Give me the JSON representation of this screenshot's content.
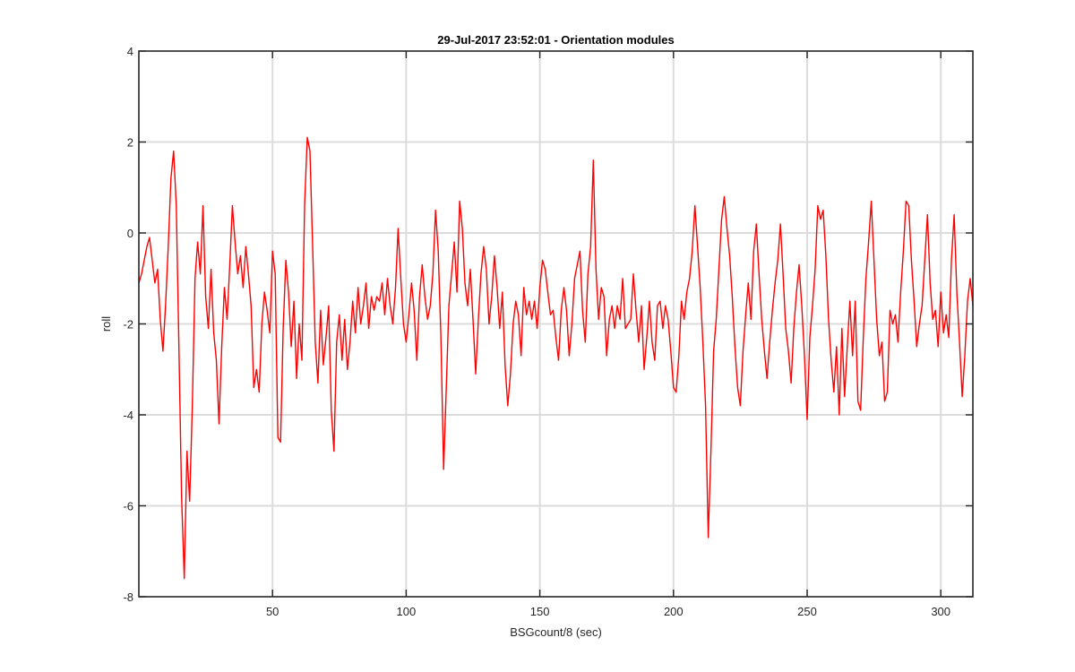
{
  "chart_data": {
    "type": "line",
    "title": "29-Jul-2017 23:52:01 - Orientation modules",
    "xlabel": "BSGcount/8 (sec)",
    "ylabel": "roll",
    "xlim": [
      0,
      312
    ],
    "ylim": [
      -8,
      4
    ],
    "xticks": [
      50,
      100,
      150,
      200,
      250,
      300
    ],
    "yticks": [
      -8,
      -6,
      -4,
      -2,
      0,
      2,
      4
    ],
    "grid": true,
    "legend": "none",
    "series": [
      {
        "color": "#ff0000",
        "points": [
          [
            0,
            -1.1
          ],
          [
            1,
            -0.9
          ],
          [
            2,
            -0.6
          ],
          [
            3,
            -0.3
          ],
          [
            4,
            -0.1
          ],
          [
            5,
            -0.6
          ],
          [
            6,
            -1.1
          ],
          [
            7,
            -0.8
          ],
          [
            8,
            -1.9
          ],
          [
            9,
            -2.6
          ],
          [
            10,
            -1.6
          ],
          [
            11,
            -0.3
          ],
          [
            12,
            1.2
          ],
          [
            13,
            1.8
          ],
          [
            14,
            0.6
          ],
          [
            15,
            -2.6
          ],
          [
            16,
            -5.8
          ],
          [
            17,
            -7.6
          ],
          [
            18,
            -4.8
          ],
          [
            19,
            -5.9
          ],
          [
            20,
            -3.8
          ],
          [
            21,
            -1.0
          ],
          [
            22,
            -0.2
          ],
          [
            23,
            -0.9
          ],
          [
            24,
            0.6
          ],
          [
            25,
            -1.4
          ],
          [
            26,
            -2.1
          ],
          [
            27,
            -0.8
          ],
          [
            28,
            -2.2
          ],
          [
            29,
            -2.8
          ],
          [
            30,
            -4.2
          ],
          [
            31,
            -2.5
          ],
          [
            32,
            -1.2
          ],
          [
            33,
            -1.9
          ],
          [
            34,
            -0.7
          ],
          [
            35,
            0.6
          ],
          [
            36,
            -0.2
          ],
          [
            37,
            -0.9
          ],
          [
            38,
            -0.5
          ],
          [
            39,
            -1.2
          ],
          [
            40,
            -0.3
          ],
          [
            41,
            -0.9
          ],
          [
            42,
            -1.6
          ],
          [
            43,
            -3.4
          ],
          [
            44,
            -3.0
          ],
          [
            45,
            -3.5
          ],
          [
            46,
            -2.0
          ],
          [
            47,
            -1.3
          ],
          [
            48,
            -1.7
          ],
          [
            49,
            -2.2
          ],
          [
            50,
            -0.4
          ],
          [
            51,
            -0.9
          ],
          [
            52,
            -4.5
          ],
          [
            53,
            -4.6
          ],
          [
            54,
            -2.1
          ],
          [
            55,
            -0.6
          ],
          [
            56,
            -1.3
          ],
          [
            57,
            -2.5
          ],
          [
            58,
            -1.5
          ],
          [
            59,
            -3.2
          ],
          [
            60,
            -2.0
          ],
          [
            61,
            -2.8
          ],
          [
            62,
            0.6
          ],
          [
            63,
            2.1
          ],
          [
            64,
            1.8
          ],
          [
            65,
            -0.3
          ],
          [
            66,
            -2.4
          ],
          [
            67,
            -3.3
          ],
          [
            68,
            -1.7
          ],
          [
            69,
            -2.9
          ],
          [
            70,
            -2.3
          ],
          [
            71,
            -1.6
          ],
          [
            72,
            -3.9
          ],
          [
            73,
            -4.8
          ],
          [
            74,
            -2.4
          ],
          [
            75,
            -1.8
          ],
          [
            76,
            -2.8
          ],
          [
            77,
            -1.9
          ],
          [
            78,
            -3.0
          ],
          [
            79,
            -2.4
          ],
          [
            80,
            -1.5
          ],
          [
            81,
            -2.2
          ],
          [
            82,
            -1.2
          ],
          [
            83,
            -2.0
          ],
          [
            84,
            -1.6
          ],
          [
            85,
            -1.1
          ],
          [
            86,
            -2.1
          ],
          [
            87,
            -1.4
          ],
          [
            88,
            -1.7
          ],
          [
            89,
            -1.4
          ],
          [
            90,
            -1.5
          ],
          [
            91,
            -1.1
          ],
          [
            92,
            -1.8
          ],
          [
            93,
            -1.0
          ],
          [
            94,
            -1.6
          ],
          [
            95,
            -2.0
          ],
          [
            96,
            -1.2
          ],
          [
            97,
            0.1
          ],
          [
            98,
            -1.0
          ],
          [
            99,
            -2.0
          ],
          [
            100,
            -2.4
          ],
          [
            101,
            -1.8
          ],
          [
            102,
            -1.1
          ],
          [
            103,
            -1.7
          ],
          [
            104,
            -2.8
          ],
          [
            105,
            -1.4
          ],
          [
            106,
            -0.7
          ],
          [
            107,
            -1.4
          ],
          [
            108,
            -1.9
          ],
          [
            109,
            -1.6
          ],
          [
            110,
            -0.9
          ],
          [
            111,
            0.5
          ],
          [
            112,
            -0.4
          ],
          [
            113,
            -2.3
          ],
          [
            114,
            -5.2
          ],
          [
            115,
            -3.4
          ],
          [
            116,
            -1.6
          ],
          [
            117,
            -0.9
          ],
          [
            118,
            -0.2
          ],
          [
            119,
            -1.3
          ],
          [
            120,
            0.7
          ],
          [
            121,
            0.1
          ],
          [
            122,
            -1.1
          ],
          [
            123,
            -1.6
          ],
          [
            124,
            -0.8
          ],
          [
            125,
            -1.9
          ],
          [
            126,
            -3.1
          ],
          [
            127,
            -1.9
          ],
          [
            128,
            -0.9
          ],
          [
            129,
            -0.3
          ],
          [
            130,
            -0.8
          ],
          [
            131,
            -2.0
          ],
          [
            132,
            -1.4
          ],
          [
            133,
            -0.5
          ],
          [
            134,
            -1.2
          ],
          [
            135,
            -2.1
          ],
          [
            136,
            -1.3
          ],
          [
            137,
            -2.9
          ],
          [
            138,
            -3.8
          ],
          [
            139,
            -3.1
          ],
          [
            140,
            -2.0
          ],
          [
            141,
            -1.5
          ],
          [
            142,
            -1.8
          ],
          [
            143,
            -2.7
          ],
          [
            144,
            -1.2
          ],
          [
            145,
            -1.8
          ],
          [
            146,
            -1.5
          ],
          [
            147,
            -1.9
          ],
          [
            148,
            -1.5
          ],
          [
            149,
            -2.1
          ],
          [
            150,
            -1.2
          ],
          [
            151,
            -0.6
          ],
          [
            152,
            -0.8
          ],
          [
            153,
            -1.3
          ],
          [
            154,
            -1.8
          ],
          [
            155,
            -1.7
          ],
          [
            156,
            -2.3
          ],
          [
            157,
            -2.8
          ],
          [
            158,
            -1.7
          ],
          [
            159,
            -1.2
          ],
          [
            160,
            -1.7
          ],
          [
            161,
            -2.7
          ],
          [
            162,
            -2.0
          ],
          [
            163,
            -1.0
          ],
          [
            164,
            -0.7
          ],
          [
            165,
            -0.4
          ],
          [
            166,
            -1.7
          ],
          [
            167,
            -2.4
          ],
          [
            168,
            -0.9
          ],
          [
            169,
            -0.3
          ],
          [
            170,
            1.6
          ],
          [
            171,
            -0.8
          ],
          [
            172,
            -1.9
          ],
          [
            173,
            -1.2
          ],
          [
            174,
            -1.4
          ],
          [
            175,
            -2.7
          ],
          [
            176,
            -1.9
          ],
          [
            177,
            -1.6
          ],
          [
            178,
            -2.1
          ],
          [
            179,
            -1.6
          ],
          [
            180,
            -1.9
          ],
          [
            181,
            -1.0
          ],
          [
            182,
            -2.1
          ],
          [
            183,
            -2.0
          ],
          [
            184,
            -1.9
          ],
          [
            185,
            -0.9
          ],
          [
            186,
            -1.7
          ],
          [
            187,
            -2.4
          ],
          [
            188,
            -1.6
          ],
          [
            189,
            -3.0
          ],
          [
            190,
            -2.3
          ],
          [
            191,
            -1.5
          ],
          [
            192,
            -2.4
          ],
          [
            193,
            -2.8
          ],
          [
            194,
            -1.6
          ],
          [
            195,
            -1.5
          ],
          [
            196,
            -2.1
          ],
          [
            197,
            -1.6
          ],
          [
            198,
            -1.9
          ],
          [
            199,
            -2.6
          ],
          [
            200,
            -3.4
          ],
          [
            201,
            -3.5
          ],
          [
            202,
            -2.7
          ],
          [
            203,
            -1.5
          ],
          [
            204,
            -1.9
          ],
          [
            205,
            -1.3
          ],
          [
            206,
            -1.0
          ],
          [
            207,
            -0.4
          ],
          [
            208,
            0.6
          ],
          [
            209,
            -0.3
          ],
          [
            210,
            -1.2
          ],
          [
            211,
            -2.4
          ],
          [
            212,
            -3.8
          ],
          [
            213,
            -6.7
          ],
          [
            214,
            -4.8
          ],
          [
            215,
            -2.6
          ],
          [
            216,
            -1.9
          ],
          [
            217,
            -0.8
          ],
          [
            218,
            0.3
          ],
          [
            219,
            0.8
          ],
          [
            220,
            0.1
          ],
          [
            221,
            -0.5
          ],
          [
            222,
            -1.4
          ],
          [
            223,
            -2.5
          ],
          [
            224,
            -3.4
          ],
          [
            225,
            -3.8
          ],
          [
            226,
            -2.6
          ],
          [
            227,
            -1.8
          ],
          [
            228,
            -1.1
          ],
          [
            229,
            -1.9
          ],
          [
            230,
            -0.4
          ],
          [
            231,
            0.2
          ],
          [
            232,
            -0.9
          ],
          [
            233,
            -1.9
          ],
          [
            234,
            -2.6
          ],
          [
            235,
            -3.2
          ],
          [
            236,
            -2.4
          ],
          [
            237,
            -1.7
          ],
          [
            238,
            -1.1
          ],
          [
            239,
            -0.6
          ],
          [
            240,
            0.2
          ],
          [
            241,
            -0.9
          ],
          [
            242,
            -2.1
          ],
          [
            243,
            -2.6
          ],
          [
            244,
            -3.3
          ],
          [
            245,
            -2.1
          ],
          [
            246,
            -1.3
          ],
          [
            247,
            -0.7
          ],
          [
            248,
            -1.6
          ],
          [
            249,
            -2.7
          ],
          [
            250,
            -4.1
          ],
          [
            251,
            -2.3
          ],
          [
            252,
            -1.6
          ],
          [
            253,
            -0.8
          ],
          [
            254,
            0.6
          ],
          [
            255,
            0.3
          ],
          [
            256,
            0.5
          ],
          [
            257,
            -0.5
          ],
          [
            258,
            -1.9
          ],
          [
            259,
            -2.8
          ],
          [
            260,
            -3.5
          ],
          [
            261,
            -2.5
          ],
          [
            262,
            -4.0
          ],
          [
            263,
            -2.1
          ],
          [
            264,
            -3.6
          ],
          [
            265,
            -2.5
          ],
          [
            266,
            -1.5
          ],
          [
            267,
            -2.7
          ],
          [
            268,
            -1.5
          ],
          [
            269,
            -3.7
          ],
          [
            270,
            -3.9
          ],
          [
            271,
            -2.3
          ],
          [
            272,
            -1.0
          ],
          [
            273,
            -0.2
          ],
          [
            274,
            0.7
          ],
          [
            275,
            -0.6
          ],
          [
            276,
            -1.9
          ],
          [
            277,
            -2.7
          ],
          [
            278,
            -2.4
          ],
          [
            279,
            -3.7
          ],
          [
            280,
            -3.5
          ],
          [
            281,
            -1.7
          ],
          [
            282,
            -2.0
          ],
          [
            283,
            -1.8
          ],
          [
            284,
            -2.4
          ],
          [
            285,
            -1.3
          ],
          [
            286,
            -0.4
          ],
          [
            287,
            0.7
          ],
          [
            288,
            0.6
          ],
          [
            289,
            -0.6
          ],
          [
            290,
            -1.5
          ],
          [
            291,
            -2.5
          ],
          [
            292,
            -2.0
          ],
          [
            293,
            -1.6
          ],
          [
            294,
            -0.6
          ],
          [
            295,
            0.4
          ],
          [
            296,
            -1.1
          ],
          [
            297,
            -1.9
          ],
          [
            298,
            -1.7
          ],
          [
            299,
            -2.5
          ],
          [
            300,
            -1.3
          ],
          [
            301,
            -2.2
          ],
          [
            302,
            -1.8
          ],
          [
            303,
            -2.3
          ],
          [
            304,
            -0.6
          ],
          [
            305,
            0.4
          ],
          [
            306,
            -1.3
          ],
          [
            307,
            -2.4
          ],
          [
            308,
            -3.6
          ],
          [
            309,
            -2.7
          ],
          [
            310,
            -1.5
          ],
          [
            311,
            -1.0
          ],
          [
            312,
            -1.6
          ]
        ]
      }
    ]
  }
}
